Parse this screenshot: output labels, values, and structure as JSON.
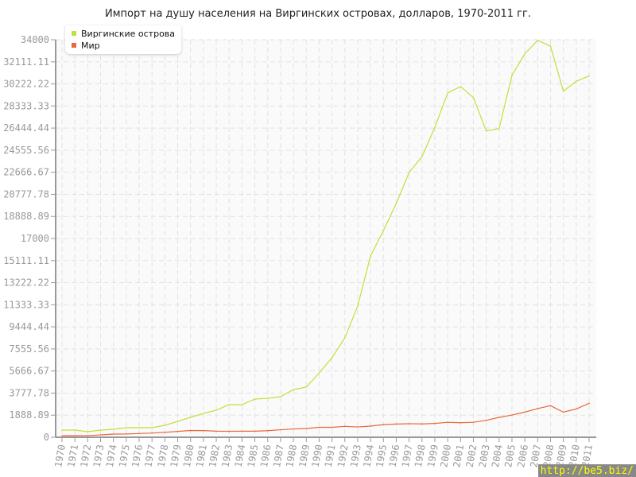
{
  "chart_data": {
    "type": "line",
    "title": "Импорт на душу населения на Виргинских островах, долларов, 1970-2011 гг.",
    "x": [
      1970,
      1971,
      1972,
      1973,
      1974,
      1975,
      1976,
      1977,
      1978,
      1979,
      1980,
      1981,
      1982,
      1983,
      1984,
      1985,
      1986,
      1987,
      1988,
      1989,
      1990,
      1991,
      1992,
      1993,
      1994,
      1995,
      1996,
      1997,
      1998,
      1999,
      2000,
      2001,
      2002,
      2003,
      2004,
      2005,
      2006,
      2007,
      2008,
      2009,
      2010,
      2011
    ],
    "x_tick_labels": [
      "1970",
      "1971",
      "1972",
      "1973",
      "1974",
      "1975",
      "1976",
      "1977",
      "1978",
      "1979",
      "1980",
      "1981",
      "1982",
      "1983",
      "1984",
      "1985",
      "1986",
      "1987",
      "1988",
      "1989",
      "1990",
      "1991",
      "1992",
      "1993",
      "1994",
      "1995",
      "1996",
      "1997",
      "1998",
      "1999",
      "2000",
      "2001",
      "2002",
      "2003",
      "2004",
      "2005",
      "2006",
      "2007",
      "2008",
      "2009",
      "2010",
      "2011"
    ],
    "y_tick_labels": [
      "0",
      "1888.89",
      "3777.78",
      "5666.67",
      "7555.56",
      "9444.44",
      "11333.33",
      "13222.22",
      "15111.11",
      "17000",
      "18888.89",
      "20777.78",
      "22666.67",
      "24555.56",
      "26444.44",
      "28333.33",
      "30222.22",
      "32111.11",
      "34000"
    ],
    "ylim": [
      0,
      34000
    ],
    "grid": true,
    "legend_placement": "top-left",
    "series": [
      {
        "name": "Виргинские острова",
        "color": "#c3df3c",
        "values": [
          612,
          612,
          476,
          612,
          680,
          816,
          816,
          816,
          1020,
          1360,
          1700,
          2040,
          2312,
          2788,
          2788,
          3264,
          3332,
          3468,
          4080,
          4284,
          5500,
          6800,
          8500,
          11220,
          15500,
          17680,
          20000,
          22650,
          24000,
          26500,
          29450,
          30000,
          29050,
          26200,
          26400,
          30950,
          32800,
          33950,
          33450,
          29600,
          30450,
          30900
        ]
      },
      {
        "name": "Мир",
        "color": "#e8683a",
        "values": [
          136,
          136,
          140,
          200,
          270,
          280,
          320,
          360,
          420,
          500,
          580,
          570,
          520,
          510,
          520,
          520,
          560,
          640,
          710,
          750,
          850,
          850,
          930,
          880,
          950,
          1080,
          1130,
          1160,
          1140,
          1180,
          1280,
          1240,
          1280,
          1450,
          1700,
          1900,
          2150,
          2450,
          2700,
          2150,
          2420,
          2900
        ]
      }
    ]
  },
  "watermark": "http://be5.biz/"
}
